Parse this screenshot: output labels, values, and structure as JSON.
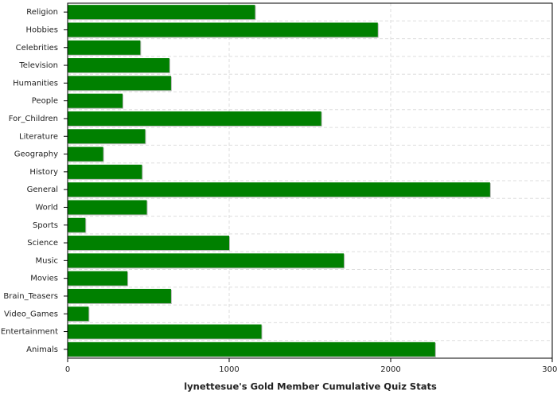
{
  "chart_data": {
    "type": "barh",
    "xlabel": "lynettesue's Gold Member Cumulative Quiz Stats",
    "categories": [
      "Religion",
      "Hobbies",
      "Celebrities",
      "Television",
      "Humanities",
      "People",
      "For_Children",
      "Literature",
      "Geography",
      "History",
      "General",
      "World",
      "Sports",
      "Science",
      "Music",
      "Movies",
      "Brain_Teasers",
      "Video_Games",
      "Entertainment",
      "Animals"
    ],
    "values": [
      1160,
      1920,
      450,
      630,
      640,
      340,
      1570,
      480,
      220,
      460,
      2615,
      490,
      110,
      1000,
      1710,
      370,
      640,
      130,
      1200,
      2275
    ],
    "color": "#008000",
    "xlim": [
      0,
      3000
    ],
    "xticks": [
      0,
      1000,
      2000,
      3000
    ],
    "grid": true
  }
}
